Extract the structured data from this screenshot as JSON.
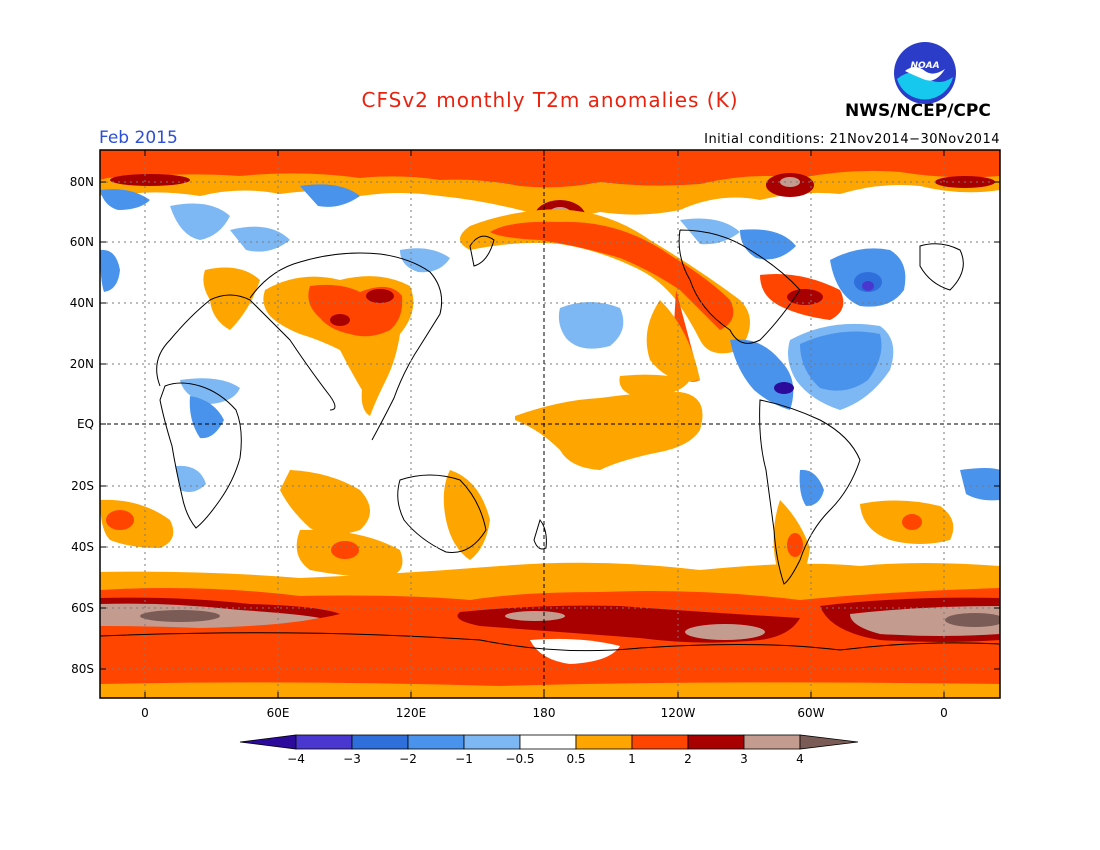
{
  "title": "CFSv2 monthly T2m anomalies (K)",
  "valid_month": "Feb 2015",
  "initial_conditions": "Initial conditions: 21Nov2014−30Nov2014",
  "organization": "NWS/NCEP/CPC",
  "logo_text": "NOAA",
  "latitude_labels": [
    "80N",
    "60N",
    "40N",
    "20N",
    "EQ",
    "20S",
    "40S",
    "60S",
    "80S"
  ],
  "longitude_labels": [
    "0",
    "60E",
    "120E",
    "180",
    "120W",
    "60W",
    "0"
  ],
  "colorbar": {
    "labels": [
      "−4",
      "−3",
      "−2",
      "−1",
      "−0.5",
      "0.5",
      "1",
      "2",
      "3",
      "4"
    ],
    "colors": [
      "#2c0a9c",
      "#4a37d0",
      "#2e6fdc",
      "#4a93ec",
      "#7db8f4",
      "#ffffff",
      "#ffa500",
      "#ff4500",
      "#a80000",
      "#c49b8f",
      "#7a5b55"
    ]
  },
  "colors": {
    "title": "#e8220f",
    "month": "#2b4fd8",
    "ocean_land_neutral": "#ffffff"
  }
}
